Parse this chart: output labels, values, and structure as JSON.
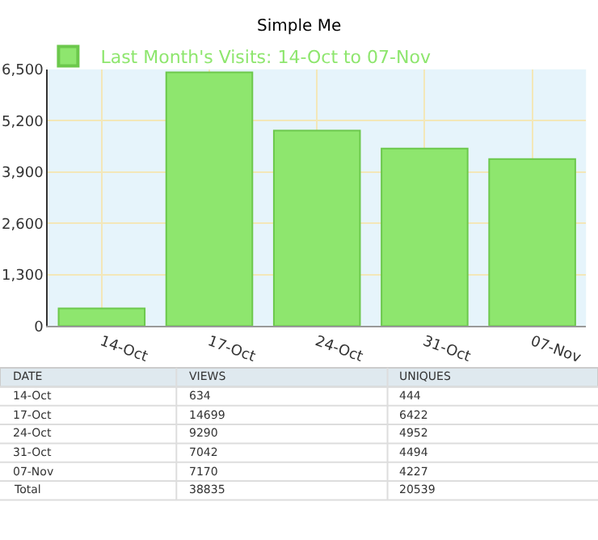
{
  "chart_data": [
    {
      "type": "bar",
      "title": "Simple Me",
      "categories": [
        "14-Oct",
        "17-Oct",
        "24-Oct",
        "31-Oct",
        "07-Nov"
      ],
      "series": [
        {
          "name": "Last Month's Visits: 14-Oct to 07-Nov",
          "color": "#8ee66e",
          "values": [
            444,
            6422,
            4952,
            4494,
            4227
          ]
        }
      ],
      "ylim": [
        0,
        6500
      ],
      "yticks": [
        0,
        {
          "value": 1300,
          "label": "1,300"
        },
        {
          "value": 2600,
          "label": "2,600"
        },
        {
          "value": 3900,
          "label": "3,900"
        },
        {
          "value": 5200,
          "label": "5,200"
        },
        {
          "value": 6500,
          "label": "6,500"
        }
      ],
      "grid": true,
      "legend": "top left"
    },
    {
      "type": "other",
      "data_labels": true,
      "xlabel": "DATE",
      "categories": [
        "14-Oct",
        "17-Oct",
        "24-Oct",
        "31-Oct",
        "07-Nov",
        "Total"
      ],
      "series": [
        {
          "name": "VIEWS",
          "values": [
            634,
            14699,
            9290,
            7042,
            7170,
            38835
          ]
        },
        {
          "name": "UNIQUES",
          "values": [
            444,
            6422,
            4952,
            4494,
            4227,
            20539
          ]
        }
      ]
    }
  ]
}
